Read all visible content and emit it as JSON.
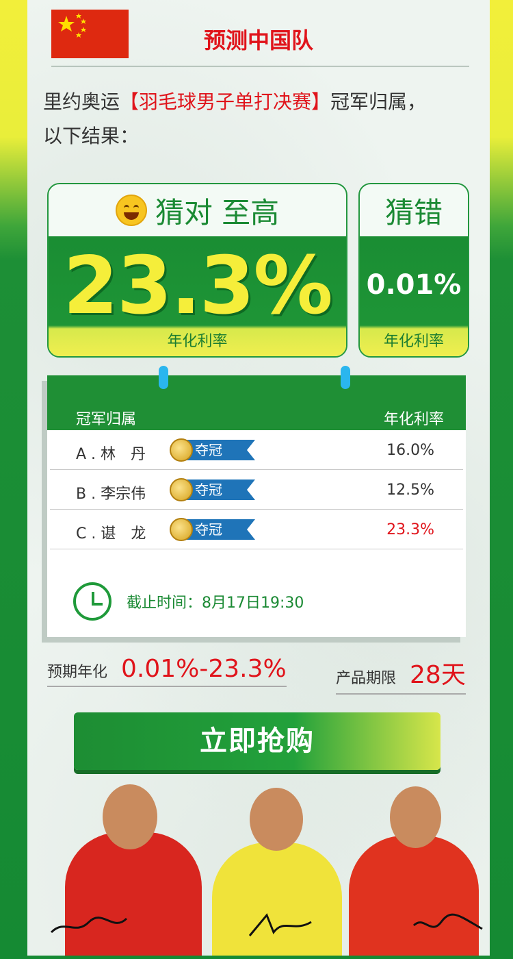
{
  "header": {
    "title": "预测中国队",
    "flag_color": "#de2910"
  },
  "intro": {
    "prefix": "里约奥运",
    "highlight": "【羽毛球男子单打决赛】",
    "suffix": "冠军归属，",
    "line2": "以下结果："
  },
  "guess_right": {
    "heading": "猜对 至高",
    "rate": "23.3%",
    "label": "年化利率",
    "icon": "smile-emoji-icon"
  },
  "guess_wrong": {
    "heading": "猜错",
    "rate": "0.01%",
    "label": "年化利率"
  },
  "table": {
    "col_left": "冠军归属",
    "col_right": "年化利率",
    "rows": [
      {
        "name": "A . 林　丹",
        "tag": "夺冠",
        "rate": "16.0%"
      },
      {
        "name": "B . 李宗伟",
        "tag": "夺冠",
        "rate": "12.5%"
      },
      {
        "name": "C . 谌　龙",
        "tag": "夺冠",
        "rate": "23.3%"
      }
    ],
    "deadline": "截止时间：8月17日19:30"
  },
  "summary": {
    "expected_label": "预期年化",
    "expected_value": "0.01%-23.3%",
    "term_label": "产品期限",
    "term_value": "28天"
  },
  "cta": {
    "label": "立即抢购"
  },
  "colors": {
    "brand_green": "#1f8f35",
    "accent_red": "#e0141b",
    "accent_yellow": "#f5ee3a",
    "tag_blue": "#1f74b8"
  }
}
